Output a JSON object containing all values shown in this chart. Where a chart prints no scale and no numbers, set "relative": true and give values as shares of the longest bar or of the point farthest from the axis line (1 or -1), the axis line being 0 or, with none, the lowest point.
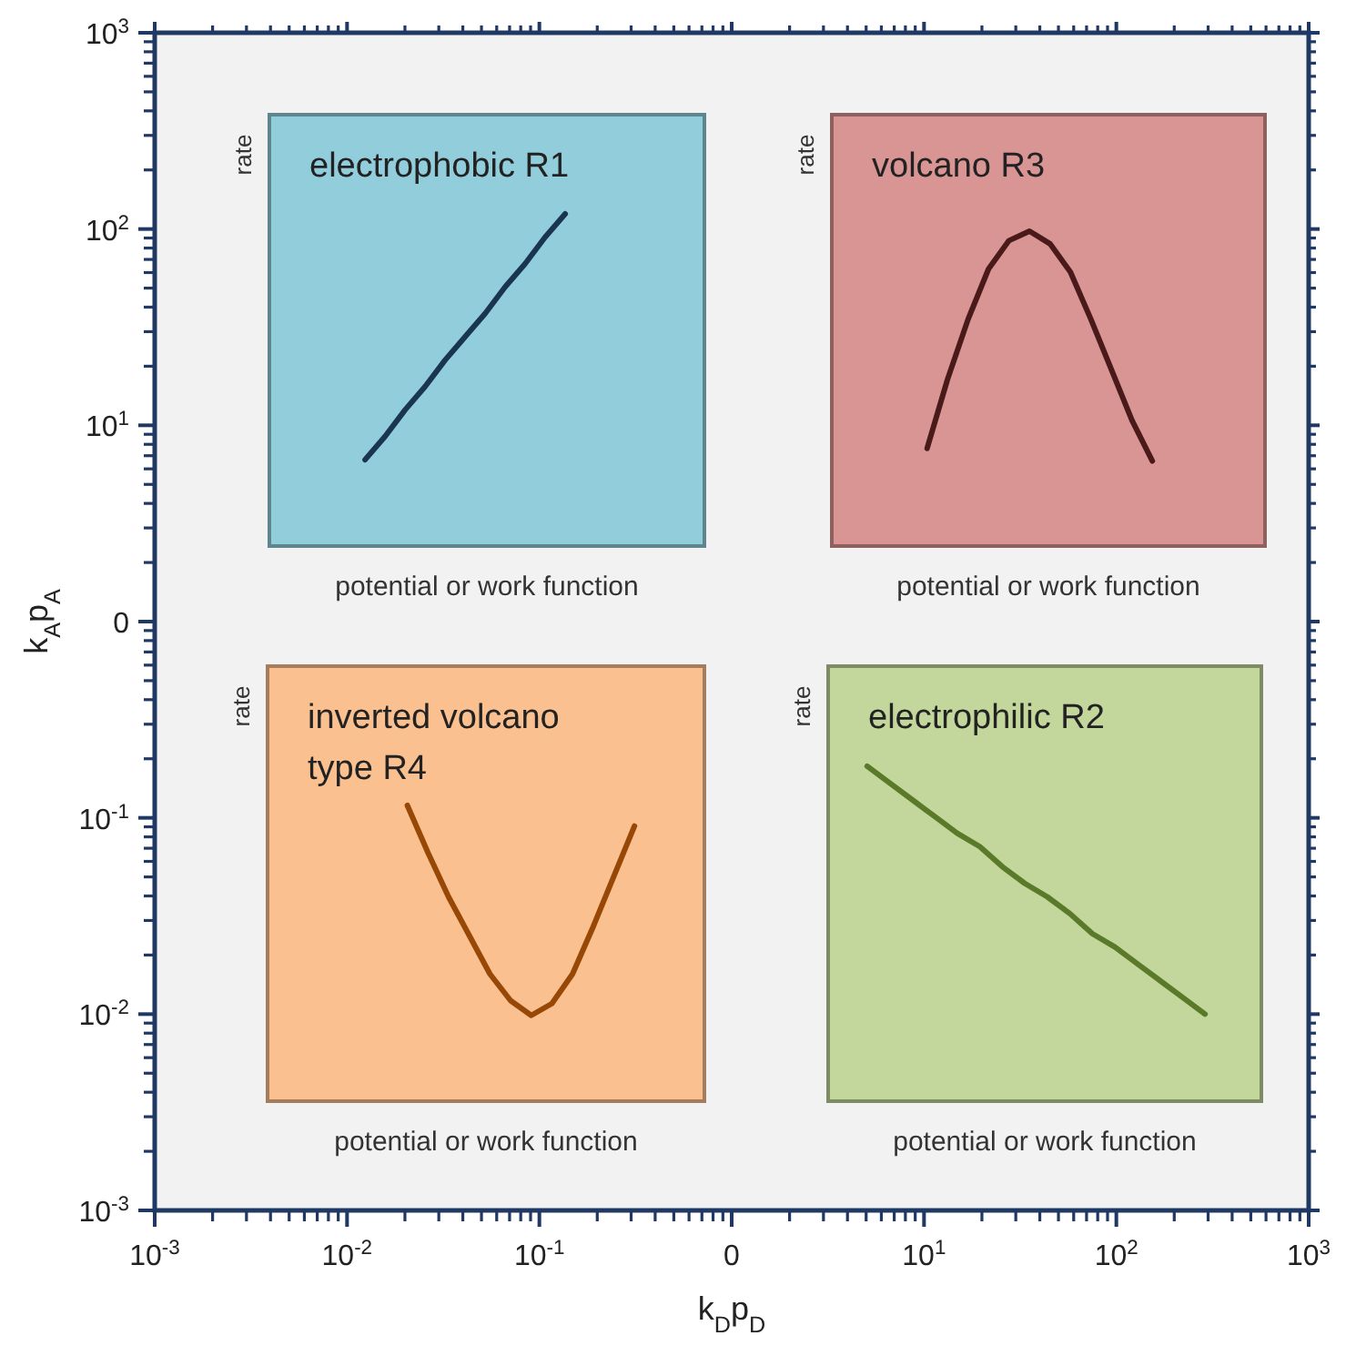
{
  "chart_data": [
    {
      "type": "other",
      "xlabel": "k$_{D}$p$_{D}$",
      "ylabel": "k$_{A}$p$_{A}$",
      "categories": [
        "10$^{-3}$",
        "10$^{-2}$",
        "10$^{-1}$",
        "0",
        "10$^{1}$",
        "10$^{2}$",
        "10$^{3}$"
      ],
      "y_categories": [
        "10$^{3}$",
        "10$^{2}$",
        "10$^{1}$",
        "0",
        "10$^{-1}$",
        "10$^{-2}$",
        "10$^{-3}$"
      ]
    },
    {
      "type": "line",
      "relative": true,
      "title": "electrophobic R1",
      "xlabel": "potential or work function",
      "ylabel": "rate",
      "categories": [
        null,
        null,
        null,
        null,
        null,
        null,
        null,
        null,
        null,
        null,
        null
      ],
      "series": [
        {
          "color": "#1a3550",
          "values": [
            0.26,
            0.33,
            0.41,
            0.48,
            0.56,
            0.63,
            0.7,
            0.78,
            0.85,
            0.93,
            1
          ]
        }
      ]
    },
    {
      "type": "line",
      "relative": true,
      "title": "volcano R3",
      "xlabel": "potential or work function",
      "ylabel": "rate",
      "categories": [
        null,
        null,
        null,
        null,
        null,
        null,
        null,
        null,
        null,
        null,
        null,
        null
      ],
      "series": [
        {
          "color": "#4a1a1a",
          "values": [
            0.31,
            0.53,
            0.72,
            0.88,
            0.97,
            1,
            0.96,
            0.87,
            0.72,
            0.56,
            0.4,
            0.27
          ]
        }
      ]
    },
    {
      "type": "line",
      "relative": true,
      "title": "inverted volcano\ntype R4",
      "xlabel": "potential or work function",
      "ylabel": "rate",
      "categories": [
        null,
        null,
        null,
        null,
        null,
        null,
        null,
        null,
        null,
        null,
        null,
        null
      ],
      "series": [
        {
          "color": "#984806",
          "values": [
            1,
            0.84,
            0.69,
            0.56,
            0.43,
            0.34,
            0.29,
            0.33,
            0.43,
            0.59,
            0.76,
            0.93
          ]
        }
      ]
    },
    {
      "type": "line",
      "relative": true,
      "title": "electrophilic R2",
      "xlabel": "potential or work function",
      "ylabel": "rate",
      "categories": [
        null,
        null,
        null,
        null,
        null,
        null,
        null,
        null,
        null,
        null,
        null,
        null,
        null,
        null,
        null,
        null
      ],
      "series": [
        {
          "color": "#5a7a2a",
          "values": [
            1,
            0.95,
            0.9,
            0.85,
            0.8,
            0.76,
            0.7,
            0.65,
            0.61,
            0.56,
            0.5,
            0.46,
            0.41,
            0.36,
            0.31,
            0.26
          ]
        }
      ]
    }
  ]
}
